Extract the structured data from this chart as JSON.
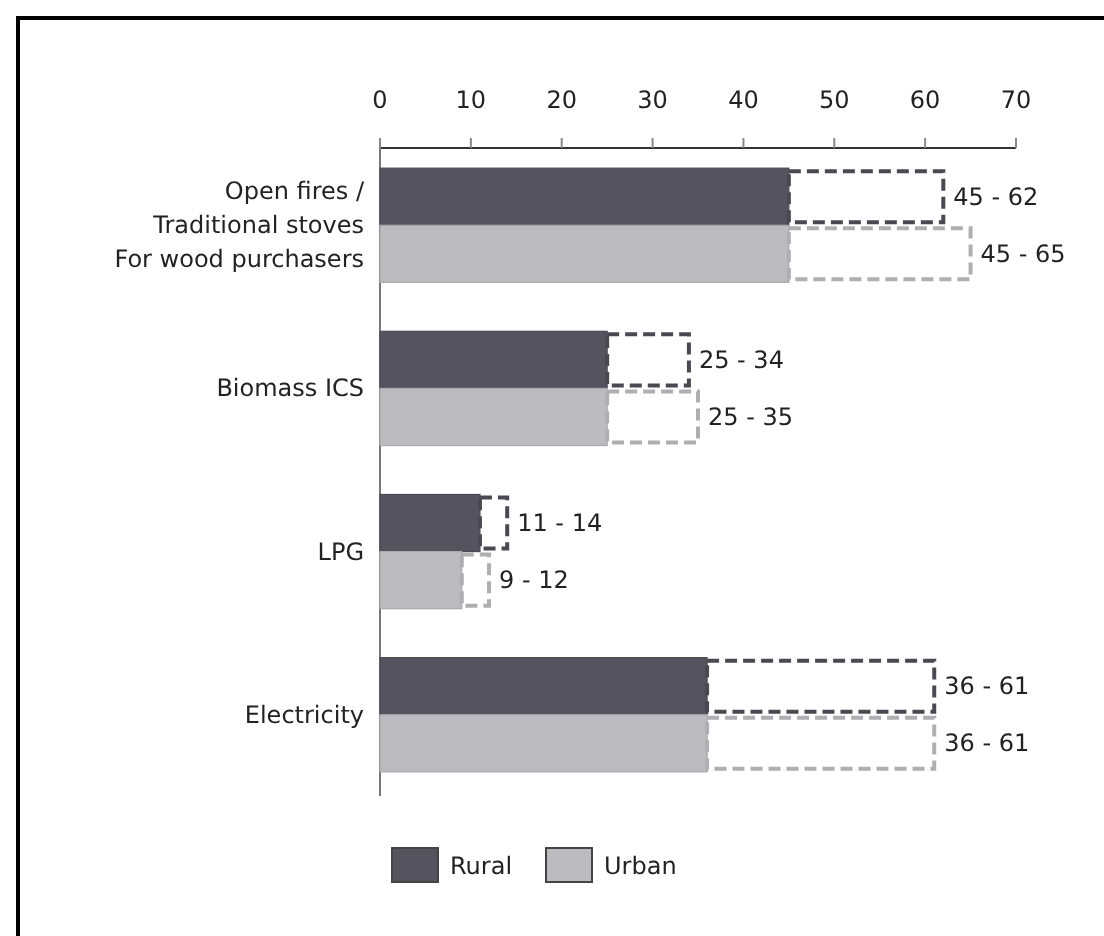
{
  "chart_data": {
    "type": "bar",
    "orientation": "horizontal",
    "categories": [
      "Open fires /\nTraditional stoves\nFor wood purchasers",
      "Biomass ICS",
      "LPG",
      "Electricity"
    ],
    "series": [
      {
        "name": "Rural",
        "color": "#55545e",
        "values": [
          45,
          25,
          11,
          36
        ]
      },
      {
        "name": "Urban",
        "color": "#bcbbbf",
        "values": [
          45,
          25,
          9,
          36
        ]
      },
      {
        "color": "#4a4952",
        "base": [
          45,
          25,
          11,
          36
        ],
        "values": [
          17,
          9,
          3,
          25
        ],
        "line_style": "dashed"
      },
      {
        "color": "#afaeb2",
        "base": [
          45,
          25,
          9,
          36
        ],
        "values": [
          20,
          10,
          3,
          25
        ],
        "line_style": "dashed"
      }
    ],
    "annotations": [
      {
        "text": "45 - 62",
        "x": 62,
        "y": "Open fires /\nTraditional stoves\nFor wood purchasers"
      },
      {
        "text": "45 - 65",
        "x": 65,
        "y": "Open fires /\nTraditional stoves\nFor wood purchasers"
      },
      {
        "text": "25 - 34",
        "x": 34,
        "y": "Biomass ICS"
      },
      {
        "text": "25 - 35",
        "x": 35,
        "y": "Biomass ICS"
      },
      {
        "text": "11 - 14",
        "x": 14,
        "y": "LPG"
      },
      {
        "text": "9 - 12",
        "x": 12,
        "y": "LPG"
      },
      {
        "text": "36 - 61",
        "x": 61,
        "y": "Electricity"
      },
      {
        "text": "36 - 61",
        "x": 61,
        "y": "Electricity"
      }
    ],
    "xlim": [
      0,
      70
    ],
    "xticks": [
      0,
      10,
      20,
      30,
      40,
      50,
      60,
      70
    ],
    "legend": "bottom",
    "grid": false
  }
}
